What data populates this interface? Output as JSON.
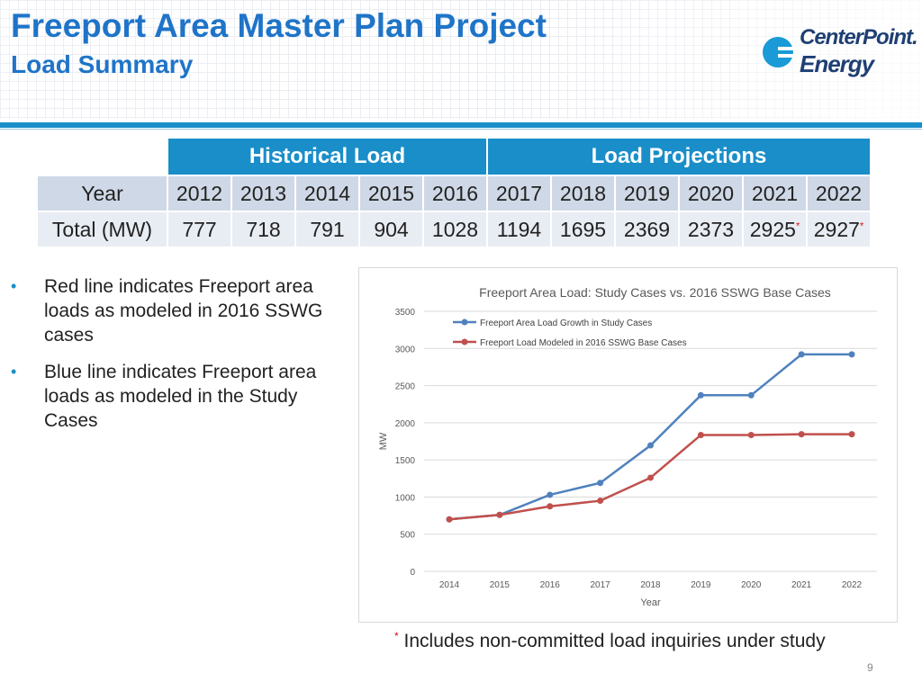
{
  "header": {
    "title": "Freeport Area Master Plan Project",
    "subtitle": "Load Summary"
  },
  "logo": {
    "word1": "CenterPoint.",
    "word2": "Energy",
    "colors": {
      "text": "#1f3f73",
      "circle": "#1a9ad6"
    }
  },
  "table": {
    "group_historical": "Historical Load",
    "group_projections": "Load Projections",
    "row_year_label": "Year",
    "row_total_label": "Total (MW)",
    "years": [
      "2012",
      "2013",
      "2014",
      "2015",
      "2016",
      "2017",
      "2018",
      "2019",
      "2020",
      "2021",
      "2022"
    ],
    "totals": [
      "777",
      "718",
      "791",
      "904",
      "1028",
      "1194",
      "1695",
      "2369",
      "2373",
      "2925",
      "2927"
    ],
    "asterisk": "*"
  },
  "bullets": [
    "Red line indicates Freeport area loads as modeled in 2016 SSWG cases",
    "Blue line indicates Freeport area loads as modeled in the Study Cases"
  ],
  "footnote": {
    "mark": "*",
    "text": "Includes non-committed load inquiries under study"
  },
  "page_number": "9",
  "colors": {
    "accent": "#1a8ec9",
    "title": "#1f74c8",
    "blue_series": "#4f81bd",
    "red_series": "#c0504d"
  },
  "chart_data": {
    "type": "line",
    "title": "Freeport Area Load: Study Cases vs. 2016 SSWG Base Cases",
    "xlabel": "Year",
    "ylabel": "MW",
    "x": [
      "2014",
      "2015",
      "2016",
      "2017",
      "2018",
      "2019",
      "2020",
      "2021",
      "2022"
    ],
    "ylim": [
      0,
      3500
    ],
    "yticks": [
      0,
      500,
      1000,
      1500,
      2000,
      2500,
      3000,
      3500
    ],
    "grid": true,
    "legend_position": "top-left",
    "series": [
      {
        "name": "Freeport Area Load Growth in Study Cases",
        "color": "#4f81bd",
        "values": [
          700,
          760,
          1030,
          1190,
          1695,
          2370,
          2370,
          2920,
          2920
        ]
      },
      {
        "name": "Freeport Load Modeled in 2016 SSWG Base Cases",
        "color": "#c0504d",
        "values": [
          700,
          760,
          875,
          950,
          1260,
          1835,
          1835,
          1845,
          1845
        ]
      }
    ]
  }
}
